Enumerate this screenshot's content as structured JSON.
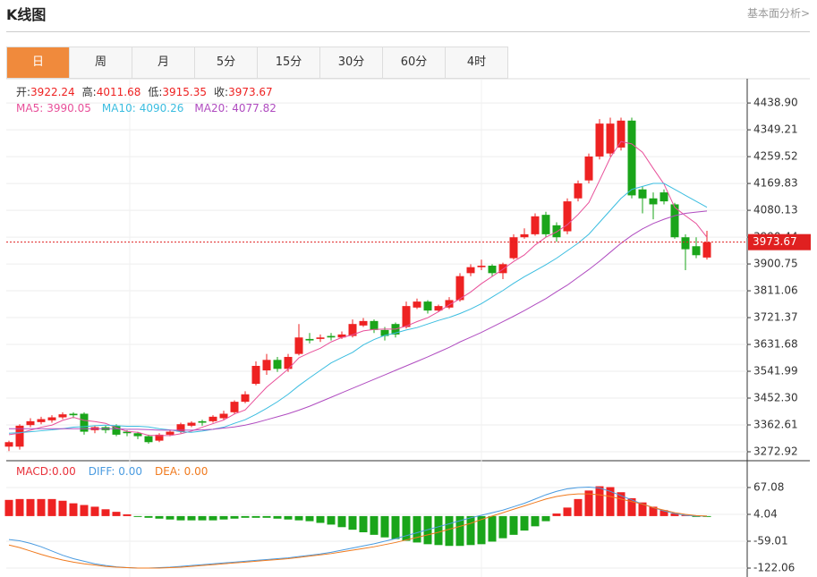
{
  "header": {
    "title": "K线图",
    "link": "基本面分析>"
  },
  "tabs": {
    "items": [
      "日",
      "周",
      "月",
      "5分",
      "15分",
      "30分",
      "60分",
      "4时"
    ],
    "active": 0
  },
  "chart_data": [
    {
      "type": "candlestick",
      "info_labels": [
        "开:",
        "高:",
        "低:",
        "收:"
      ],
      "open": [
        3290,
        3290,
        3362,
        3372,
        3378,
        3388,
        3400,
        3400,
        3345,
        3355,
        3360,
        3340,
        3335,
        3325,
        3310,
        3330,
        3340,
        3360,
        3375,
        3375,
        3385,
        3405,
        3440,
        3500,
        3545,
        3580,
        3550,
        3600,
        3650,
        3650,
        3660,
        3655,
        3660,
        3695,
        3710,
        3680,
        3700,
        3690,
        3755,
        3775,
        3745,
        3755,
        3780,
        3870,
        3890,
        3895,
        3870,
        3920,
        3990,
        4000,
        4065,
        4030,
        4010,
        4120,
        4180,
        4260,
        4270,
        4290,
        4380,
        4150,
        4120,
        4140,
        4100,
        3990,
        3960,
        3922.24
      ],
      "high": [
        3310,
        3365,
        3385,
        3390,
        3395,
        3405,
        3405,
        3405,
        3360,
        3360,
        3365,
        3345,
        3340,
        3330,
        3335,
        3345,
        3370,
        3375,
        3380,
        3395,
        3410,
        3445,
        3475,
        3575,
        3600,
        3590,
        3600,
        3700,
        3670,
        3665,
        3670,
        3675,
        3715,
        3720,
        3715,
        3690,
        3705,
        3775,
        3785,
        3780,
        3765,
        3790,
        3870,
        3900,
        3915,
        3900,
        3905,
        4000,
        4020,
        4070,
        4075,
        4040,
        4120,
        4180,
        4270,
        4385,
        4390,
        4390,
        4390,
        4160,
        4140,
        4150,
        4105,
        4000,
        3990,
        4011.68
      ],
      "low": [
        3275,
        3280,
        3355,
        3365,
        3370,
        3382,
        3385,
        3330,
        3335,
        3335,
        3325,
        3325,
        3315,
        3300,
        3305,
        3325,
        3335,
        3355,
        3360,
        3370,
        3380,
        3400,
        3435,
        3495,
        3530,
        3540,
        3540,
        3595,
        3635,
        3640,
        3645,
        3650,
        3655,
        3690,
        3670,
        3645,
        3655,
        3685,
        3750,
        3735,
        3740,
        3750,
        3775,
        3860,
        3880,
        3860,
        3850,
        3915,
        3985,
        3995,
        3990,
        3975,
        4000,
        4110,
        4170,
        4250,
        4260,
        4280,
        4120,
        4070,
        4050,
        4100,
        3985,
        3880,
        3920,
        3915.35
      ],
      "close": [
        3305,
        3360,
        3375,
        3382,
        3388,
        3398,
        3395,
        3340,
        3355,
        3345,
        3330,
        3335,
        3325,
        3305,
        3330,
        3340,
        3365,
        3370,
        3370,
        3390,
        3400,
        3440,
        3465,
        3560,
        3580,
        3550,
        3590,
        3655,
        3645,
        3655,
        3655,
        3665,
        3700,
        3710,
        3680,
        3660,
        3665,
        3760,
        3775,
        3745,
        3760,
        3780,
        3860,
        3890,
        3895,
        3870,
        3900,
        3990,
        4000,
        4060,
        4000,
        3990,
        4110,
        4170,
        4260,
        4370,
        4370,
        4380,
        4130,
        4120,
        4100,
        4110,
        3990,
        3950,
        3930,
        3973.67
      ],
      "up_color": "#ee2222",
      "down_color": "#1aa51a",
      "series": [
        {
          "name": "MA5:",
          "color": "#e8509a",
          "values": [
            3330,
            3335,
            3345,
            3355,
            3362,
            3378,
            3388,
            3378,
            3374,
            3368,
            3353,
            3341,
            3338,
            3328,
            3327,
            3327,
            3333,
            3342,
            3355,
            3367,
            3379,
            3399,
            3413,
            3451,
            3489,
            3519,
            3549,
            3587,
            3604,
            3619,
            3640,
            3655,
            3664,
            3677,
            3682,
            3683,
            3683,
            3693,
            3708,
            3721,
            3741,
            3764,
            3784,
            3807,
            3835,
            3859,
            3883,
            3909,
            3931,
            3964,
            3990,
            4008,
            4032,
            4066,
            4106,
            4180,
            4256,
            4310,
            4302,
            4274,
            4220,
            4168,
            4090,
            4062,
            4036,
            3990.05
          ]
        },
        {
          "name": "MA10:",
          "color": "#3bbde0",
          "values": [
            3335,
            3337,
            3340,
            3343,
            3346,
            3350,
            3355,
            3357,
            3360,
            3362,
            3360,
            3358,
            3358,
            3356,
            3350,
            3346,
            3340,
            3338,
            3342,
            3348,
            3355,
            3368,
            3380,
            3398,
            3418,
            3440,
            3465,
            3494,
            3520,
            3545,
            3570,
            3588,
            3605,
            3630,
            3648,
            3662,
            3670,
            3680,
            3688,
            3700,
            3712,
            3722,
            3735,
            3750,
            3768,
            3790,
            3812,
            3836,
            3858,
            3878,
            3898,
            3920,
            3945,
            3970,
            4000,
            4040,
            4080,
            4120,
            4150,
            4160,
            4170,
            4170,
            4150,
            4130,
            4110,
            4090.26
          ]
        },
        {
          "name": "MA20:",
          "color": "#b04cc0",
          "values": [
            3350,
            3350,
            3350,
            3350,
            3350,
            3350,
            3350,
            3350,
            3350,
            3350,
            3350,
            3348,
            3348,
            3347,
            3345,
            3345,
            3345,
            3345,
            3346,
            3348,
            3352,
            3356,
            3362,
            3370,
            3380,
            3390,
            3400,
            3412,
            3425,
            3440,
            3455,
            3470,
            3485,
            3500,
            3515,
            3530,
            3545,
            3560,
            3575,
            3590,
            3606,
            3622,
            3640,
            3656,
            3672,
            3690,
            3708,
            3726,
            3745,
            3765,
            3785,
            3808,
            3830,
            3856,
            3882,
            3910,
            3940,
            3970,
            3996,
            4018,
            4036,
            4050,
            4062,
            4070,
            4074,
            4077.82
          ]
        }
      ],
      "ylim": [
        3243,
        4520
      ],
      "yticks": [
        {
          "value": 4438.9,
          "label": "4438.90"
        },
        {
          "value": 4349.21,
          "label": "4349.21"
        },
        {
          "value": 4259.52,
          "label": "4259.52"
        },
        {
          "value": 4169.83,
          "label": "4169.83"
        },
        {
          "value": 4080.13,
          "label": "4080.13"
        },
        {
          "value": 3990.44,
          "label": "3990.44"
        },
        {
          "value": 3900.75,
          "label": "3900.75"
        },
        {
          "value": 3811.06,
          "label": "3811.06"
        },
        {
          "value": 3721.37,
          "label": "3721.37"
        },
        {
          "value": 3631.68,
          "label": "3631.68"
        },
        {
          "value": 3541.99,
          "label": "3541.99"
        },
        {
          "value": 3452.3,
          "label": "3452.30"
        },
        {
          "value": 3362.61,
          "label": "3362.61"
        },
        {
          "value": 3272.92,
          "label": "3272.92"
        }
      ],
      "grid": true,
      "price_line_color": "#e02020"
    },
    {
      "type": "macd",
      "series": [
        {
          "name": "MACD:0.00",
          "kind": "bar",
          "color": "#e8303a",
          "up_color": "#ee2222",
          "down_color": "#1aa51a",
          "values": [
            38,
            40,
            40,
            40,
            40,
            36,
            30,
            26,
            22,
            16,
            10,
            4,
            -2,
            -4,
            -6,
            -8,
            -10,
            -10,
            -10,
            -10,
            -8,
            -6,
            -4,
            -4,
            -4,
            -6,
            -8,
            -10,
            -12,
            -16,
            -20,
            -26,
            -32,
            -38,
            -44,
            -50,
            -54,
            -58,
            -62,
            -66,
            -68,
            -70,
            -70,
            -68,
            -66,
            -60,
            -52,
            -44,
            -34,
            -24,
            -12,
            6,
            20,
            40,
            60,
            70,
            68,
            56,
            42,
            32,
            22,
            14,
            6,
            2,
            -2,
            -2
          ]
        },
        {
          "name": "DIFF: 0.00",
          "kind": "line",
          "color": "#4a9be0",
          "values": [
            -55,
            -58,
            -64,
            -72,
            -82,
            -92,
            -100,
            -106,
            -112,
            -116,
            -119,
            -121,
            -122,
            -122,
            -121,
            -120,
            -118,
            -116,
            -114,
            -112,
            -110,
            -108,
            -106,
            -104,
            -102,
            -100,
            -98,
            -95,
            -92,
            -89,
            -85,
            -80,
            -75,
            -70,
            -65,
            -59,
            -53,
            -46,
            -39,
            -32,
            -25,
            -18,
            -11,
            -4,
            2,
            8,
            14,
            22,
            30,
            40,
            50,
            58,
            64,
            67,
            68,
            66,
            58,
            48,
            38,
            28,
            20,
            12,
            6,
            2,
            0,
            0
          ]
        },
        {
          "name": "DEA: 0.00",
          "kind": "line",
          "color": "#f07a1e",
          "values": [
            -68,
            -74,
            -82,
            -90,
            -97,
            -103,
            -108,
            -112,
            -115,
            -118,
            -120,
            -121,
            -122,
            -122,
            -122,
            -121,
            -120,
            -118,
            -116,
            -114,
            -112,
            -110,
            -108,
            -106,
            -104,
            -102,
            -100,
            -97,
            -94,
            -91,
            -88,
            -84,
            -80,
            -76,
            -72,
            -67,
            -62,
            -56,
            -50,
            -44,
            -38,
            -31,
            -24,
            -17,
            -8,
            0,
            8,
            16,
            24,
            32,
            40,
            46,
            50,
            52,
            52,
            50,
            46,
            40,
            34,
            28,
            20,
            14,
            8,
            4,
            1,
            0
          ]
        }
      ],
      "ylim": [
        -143,
        130
      ],
      "yticks": [
        {
          "value": 67.08,
          "label": "67.08"
        },
        {
          "value": 4.04,
          "label": "4.04"
        },
        {
          "value": -59.01,
          "label": "-59.01"
        },
        {
          "value": -122.06,
          "label": "-122.06"
        }
      ],
      "grid": true
    }
  ]
}
